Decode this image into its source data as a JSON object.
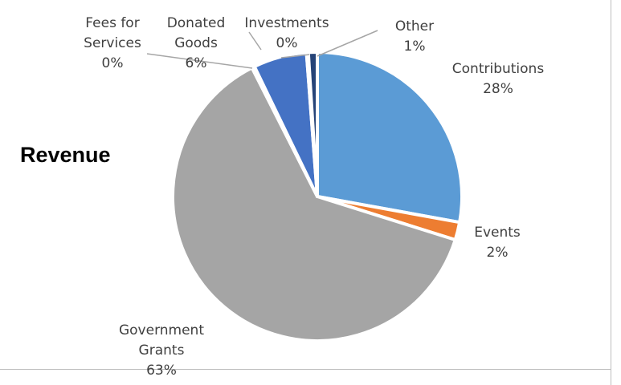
{
  "chart_data": {
    "type": "pie",
    "title": "Revenue",
    "categories": [
      "Contributions",
      "Events",
      "Government Grants",
      "Fees for Services",
      "Donated Goods",
      "Investments",
      "Other"
    ],
    "label_lines": [
      [
        "Contributions",
        "28%"
      ],
      [
        "Events",
        "2%"
      ],
      [
        "Government",
        "Grants",
        "63%"
      ],
      [
        "Fees for",
        "Services",
        "0%"
      ],
      [
        "Donated",
        "Goods",
        "6%"
      ],
      [
        "Investments",
        "0%"
      ],
      [
        "Other",
        "1%"
      ]
    ],
    "values": [
      28,
      2,
      63,
      0.3,
      6,
      0.2,
      1
    ],
    "colors": [
      "#5b9bd5",
      "#ed7d31",
      "#a5a5a5",
      "#ffc000",
      "#4472c4",
      "#70ad47",
      "#264478"
    ],
    "legend": "none",
    "grid": false
  }
}
